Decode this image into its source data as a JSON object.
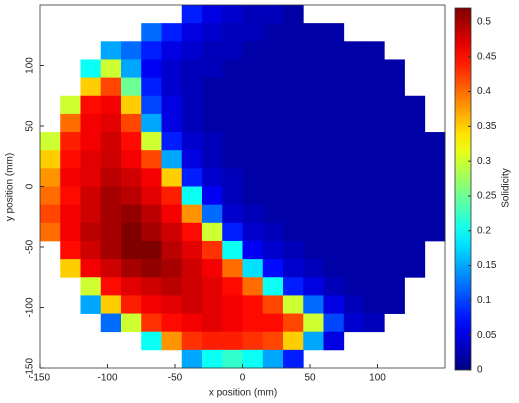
{
  "chart_data": {
    "type": "heatmap",
    "x_label": "x position (mm)",
    "y_label": "y position (mm)",
    "colorbar_label": "Solidicity",
    "colormap": "jet",
    "x": [
      -142.5,
      -127.5,
      -112.5,
      -97.5,
      -82.5,
      -67.5,
      -52.5,
      -37.5,
      -22.5,
      -7.5,
      7.5,
      22.5,
      37.5,
      52.5,
      67.5,
      82.5,
      97.5,
      112.5,
      127.5,
      142.5
    ],
    "y": [
      142.5,
      127.5,
      112.5,
      97.5,
      82.5,
      67.5,
      52.5,
      37.5,
      22.5,
      7.5,
      -7.5,
      -22.5,
      -37.5,
      -52.5,
      -67.5,
      -82.5,
      -97.5,
      -112.5,
      -127.5,
      -142.5
    ],
    "z": [
      [
        null,
        null,
        null,
        null,
        null,
        null,
        null,
        0.08,
        0.05,
        0.04,
        0.03,
        0.03,
        0.02,
        null,
        null,
        null,
        null,
        null,
        null,
        null
      ],
      [
        null,
        null,
        null,
        null,
        null,
        0.12,
        0.08,
        0.05,
        0.04,
        0.03,
        0.03,
        0.02,
        0.02,
        0.02,
        0.02,
        null,
        null,
        null,
        null,
        null
      ],
      [
        null,
        null,
        null,
        0.15,
        0.12,
        0.08,
        0.05,
        0.04,
        0.03,
        0.03,
        0.02,
        0.02,
        0.02,
        0.02,
        0.02,
        0.02,
        0.02,
        null,
        null,
        null
      ],
      [
        null,
        null,
        0.2,
        0.3,
        0.15,
        0.06,
        0.04,
        0.03,
        0.03,
        0.02,
        0.02,
        0.02,
        0.02,
        0.02,
        0.02,
        0.02,
        0.02,
        0.02,
        null,
        null
      ],
      [
        null,
        null,
        0.35,
        0.42,
        0.25,
        0.08,
        0.04,
        0.03,
        0.02,
        0.02,
        0.02,
        0.02,
        0.02,
        0.02,
        0.02,
        0.02,
        0.02,
        0.02,
        null,
        null
      ],
      [
        null,
        0.3,
        0.45,
        0.46,
        0.35,
        0.1,
        0.05,
        0.03,
        0.02,
        0.02,
        0.02,
        0.02,
        0.02,
        0.02,
        0.02,
        0.02,
        0.02,
        0.02,
        0.02,
        null
      ],
      [
        null,
        0.4,
        0.46,
        0.47,
        0.42,
        0.15,
        0.05,
        0.03,
        0.02,
        0.02,
        0.02,
        0.02,
        0.02,
        0.02,
        0.02,
        0.02,
        0.02,
        0.02,
        0.02,
        null
      ],
      [
        0.3,
        0.44,
        0.46,
        0.48,
        0.45,
        0.3,
        0.08,
        0.04,
        0.03,
        0.02,
        0.02,
        0.02,
        0.02,
        0.02,
        0.02,
        0.02,
        0.02,
        0.02,
        0.02,
        0.02
      ],
      [
        0.35,
        0.45,
        0.47,
        0.48,
        0.46,
        0.42,
        0.15,
        0.05,
        0.03,
        0.02,
        0.02,
        0.02,
        0.02,
        0.02,
        0.02,
        0.02,
        0.02,
        0.02,
        0.02,
        0.02
      ],
      [
        0.38,
        0.46,
        0.47,
        0.49,
        0.48,
        0.46,
        0.35,
        0.08,
        0.04,
        0.03,
        0.02,
        0.02,
        0.02,
        0.02,
        0.02,
        0.02,
        0.02,
        0.02,
        0.02,
        0.02
      ],
      [
        0.4,
        0.45,
        0.48,
        0.5,
        0.49,
        0.47,
        0.44,
        0.2,
        0.06,
        0.03,
        0.02,
        0.02,
        0.02,
        0.02,
        0.02,
        0.02,
        0.02,
        0.02,
        0.02,
        0.02
      ],
      [
        0.42,
        0.46,
        0.48,
        0.5,
        0.51,
        0.49,
        0.46,
        0.38,
        0.12,
        0.04,
        0.03,
        0.02,
        0.02,
        0.02,
        0.02,
        0.02,
        0.02,
        0.02,
        0.02,
        0.02
      ],
      [
        0.4,
        0.46,
        0.49,
        0.5,
        0.52,
        0.5,
        0.48,
        0.45,
        0.3,
        0.08,
        0.04,
        0.03,
        0.02,
        0.02,
        0.02,
        0.02,
        0.02,
        0.02,
        0.02,
        0.02
      ],
      [
        null,
        0.45,
        0.48,
        0.5,
        0.52,
        0.52,
        0.49,
        0.47,
        0.43,
        0.2,
        0.06,
        0.04,
        0.03,
        0.02,
        0.02,
        0.02,
        0.02,
        0.02,
        0.02,
        null
      ],
      [
        null,
        0.35,
        0.46,
        0.48,
        0.5,
        0.51,
        0.5,
        0.48,
        0.46,
        0.4,
        0.18,
        0.07,
        0.04,
        0.03,
        0.02,
        0.02,
        0.02,
        0.02,
        0.02,
        null
      ],
      [
        null,
        null,
        0.3,
        0.45,
        0.47,
        0.48,
        0.49,
        0.48,
        0.47,
        0.45,
        0.4,
        0.2,
        0.08,
        0.05,
        0.03,
        0.02,
        0.02,
        0.02,
        null,
        null
      ],
      [
        null,
        null,
        0.15,
        0.35,
        0.44,
        0.46,
        0.47,
        0.48,
        0.47,
        0.46,
        0.45,
        0.42,
        0.3,
        0.12,
        0.05,
        0.03,
        0.02,
        0.02,
        null,
        null
      ],
      [
        null,
        null,
        null,
        0.12,
        0.3,
        0.43,
        0.45,
        0.46,
        0.47,
        0.46,
        0.45,
        0.45,
        0.42,
        0.3,
        0.1,
        0.04,
        0.03,
        null,
        null,
        null
      ],
      [
        null,
        null,
        null,
        null,
        null,
        0.2,
        0.38,
        0.43,
        0.44,
        0.44,
        0.43,
        0.42,
        0.35,
        0.15,
        0.05,
        null,
        null,
        null,
        null,
        null
      ],
      [
        null,
        null,
        null,
        null,
        null,
        null,
        null,
        0.15,
        0.2,
        0.22,
        0.2,
        0.15,
        0.08,
        null,
        null,
        null,
        null,
        null,
        null,
        null
      ]
    ],
    "xlim": [
      -150,
      150
    ],
    "ylim": [
      -150,
      150
    ],
    "xticks": [
      -150,
      -100,
      -50,
      0,
      50,
      100
    ],
    "yticks": [
      -150,
      -100,
      -50,
      0,
      50,
      100
    ],
    "clim": [
      0,
      0.52
    ],
    "cticks": [
      0,
      0.05,
      0.1,
      0.15,
      0.2,
      0.25,
      0.3,
      0.35,
      0.4,
      0.45,
      0.5
    ]
  }
}
